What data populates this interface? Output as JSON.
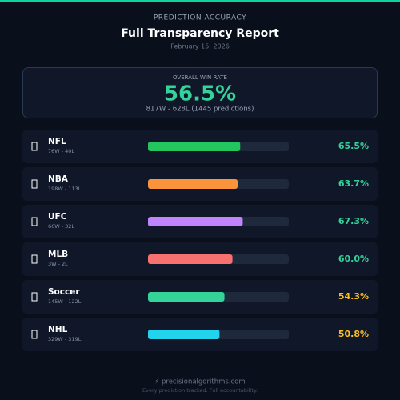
{
  "header": {
    "eyebrow": "PREDICTION ACCURACY",
    "title": "Full Transparency Report",
    "date": "February 15, 2026"
  },
  "summary": {
    "label": "OVERALL WIN RATE",
    "value": 56.5,
    "value_label": "56.5%",
    "record": "817W - 628L  (1445 predictions)"
  },
  "bars": {
    "xlim": [
      0,
      100
    ],
    "rows": [
      {
        "name": "NFL",
        "record": "76W - 40L",
        "value": 65.5,
        "value_label": "65.5%",
        "color": "#22c55e",
        "label_color": "#34d399"
      },
      {
        "name": "NBA",
        "record": "198W - 113L",
        "value": 63.7,
        "value_label": "63.7%",
        "color": "#fb923c",
        "label_color": "#34d399"
      },
      {
        "name": "UFC",
        "record": "66W - 32L",
        "value": 67.3,
        "value_label": "67.3%",
        "color": "#c084fc",
        "label_color": "#34d399"
      },
      {
        "name": "MLB",
        "record": "3W - 2L",
        "value": 60.0,
        "value_label": "60.0%",
        "color": "#f87171",
        "label_color": "#34d399"
      },
      {
        "name": "Soccer",
        "record": "145W - 122L",
        "value": 54.3,
        "value_label": "54.3%",
        "color": "#34d399",
        "label_color": "#fbbf24"
      },
      {
        "name": "NHL",
        "record": "329W - 319L",
        "value": 50.8,
        "value_label": "50.8%",
        "color": "#22d3ee",
        "label_color": "#fbbf24"
      }
    ]
  },
  "footer": {
    "site": "⚡ precisionalgorithms.com",
    "tagline": "Every prediction tracked. Full accountability."
  }
}
